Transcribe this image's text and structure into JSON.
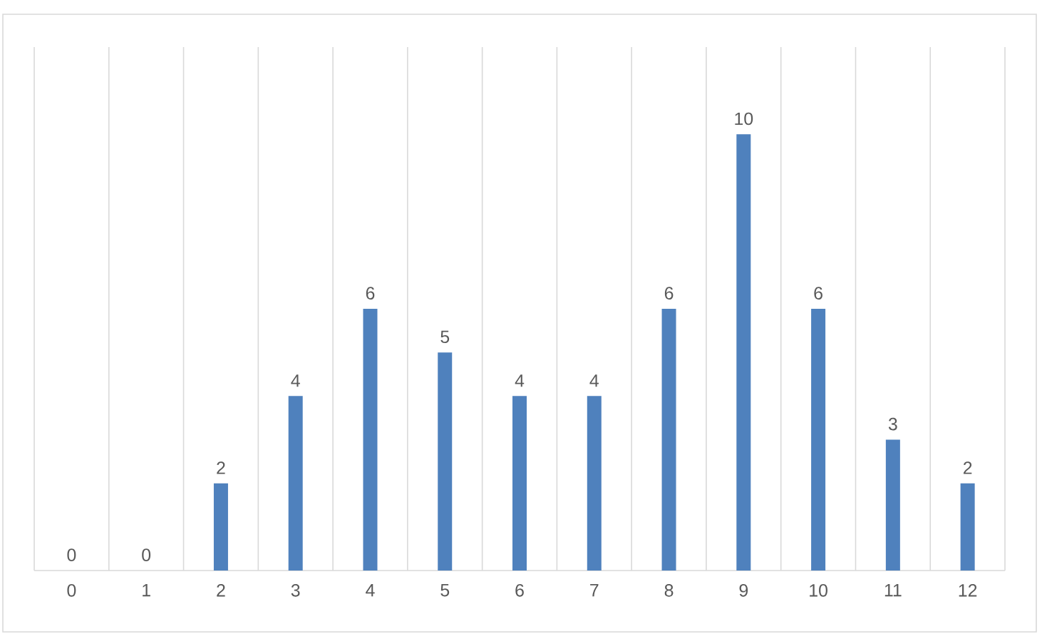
{
  "chart_data": {
    "type": "bar",
    "categories": [
      "0",
      "1",
      "2",
      "3",
      "4",
      "5",
      "6",
      "7",
      "8",
      "9",
      "10",
      "11",
      "12"
    ],
    "values": [
      0,
      0,
      2,
      4,
      6,
      5,
      4,
      4,
      6,
      10,
      6,
      3,
      2
    ],
    "color": "#4f81bd",
    "ylim": [
      0,
      12
    ],
    "grid": "x",
    "data_labels": true,
    "tick_labels": "x"
  }
}
